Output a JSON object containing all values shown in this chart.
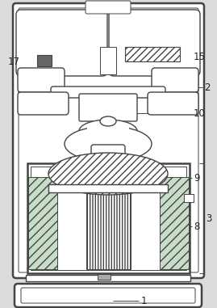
{
  "bg_color": "#dcdcdc",
  "line_color": "#444444",
  "label_color": "#222222",
  "figsize": [
    2.69,
    3.81
  ],
  "dpi": 100,
  "lw_outer": 1.8,
  "lw_inner": 1.0,
  "lw_thin": 0.7,
  "label_fontsize": 8.5
}
